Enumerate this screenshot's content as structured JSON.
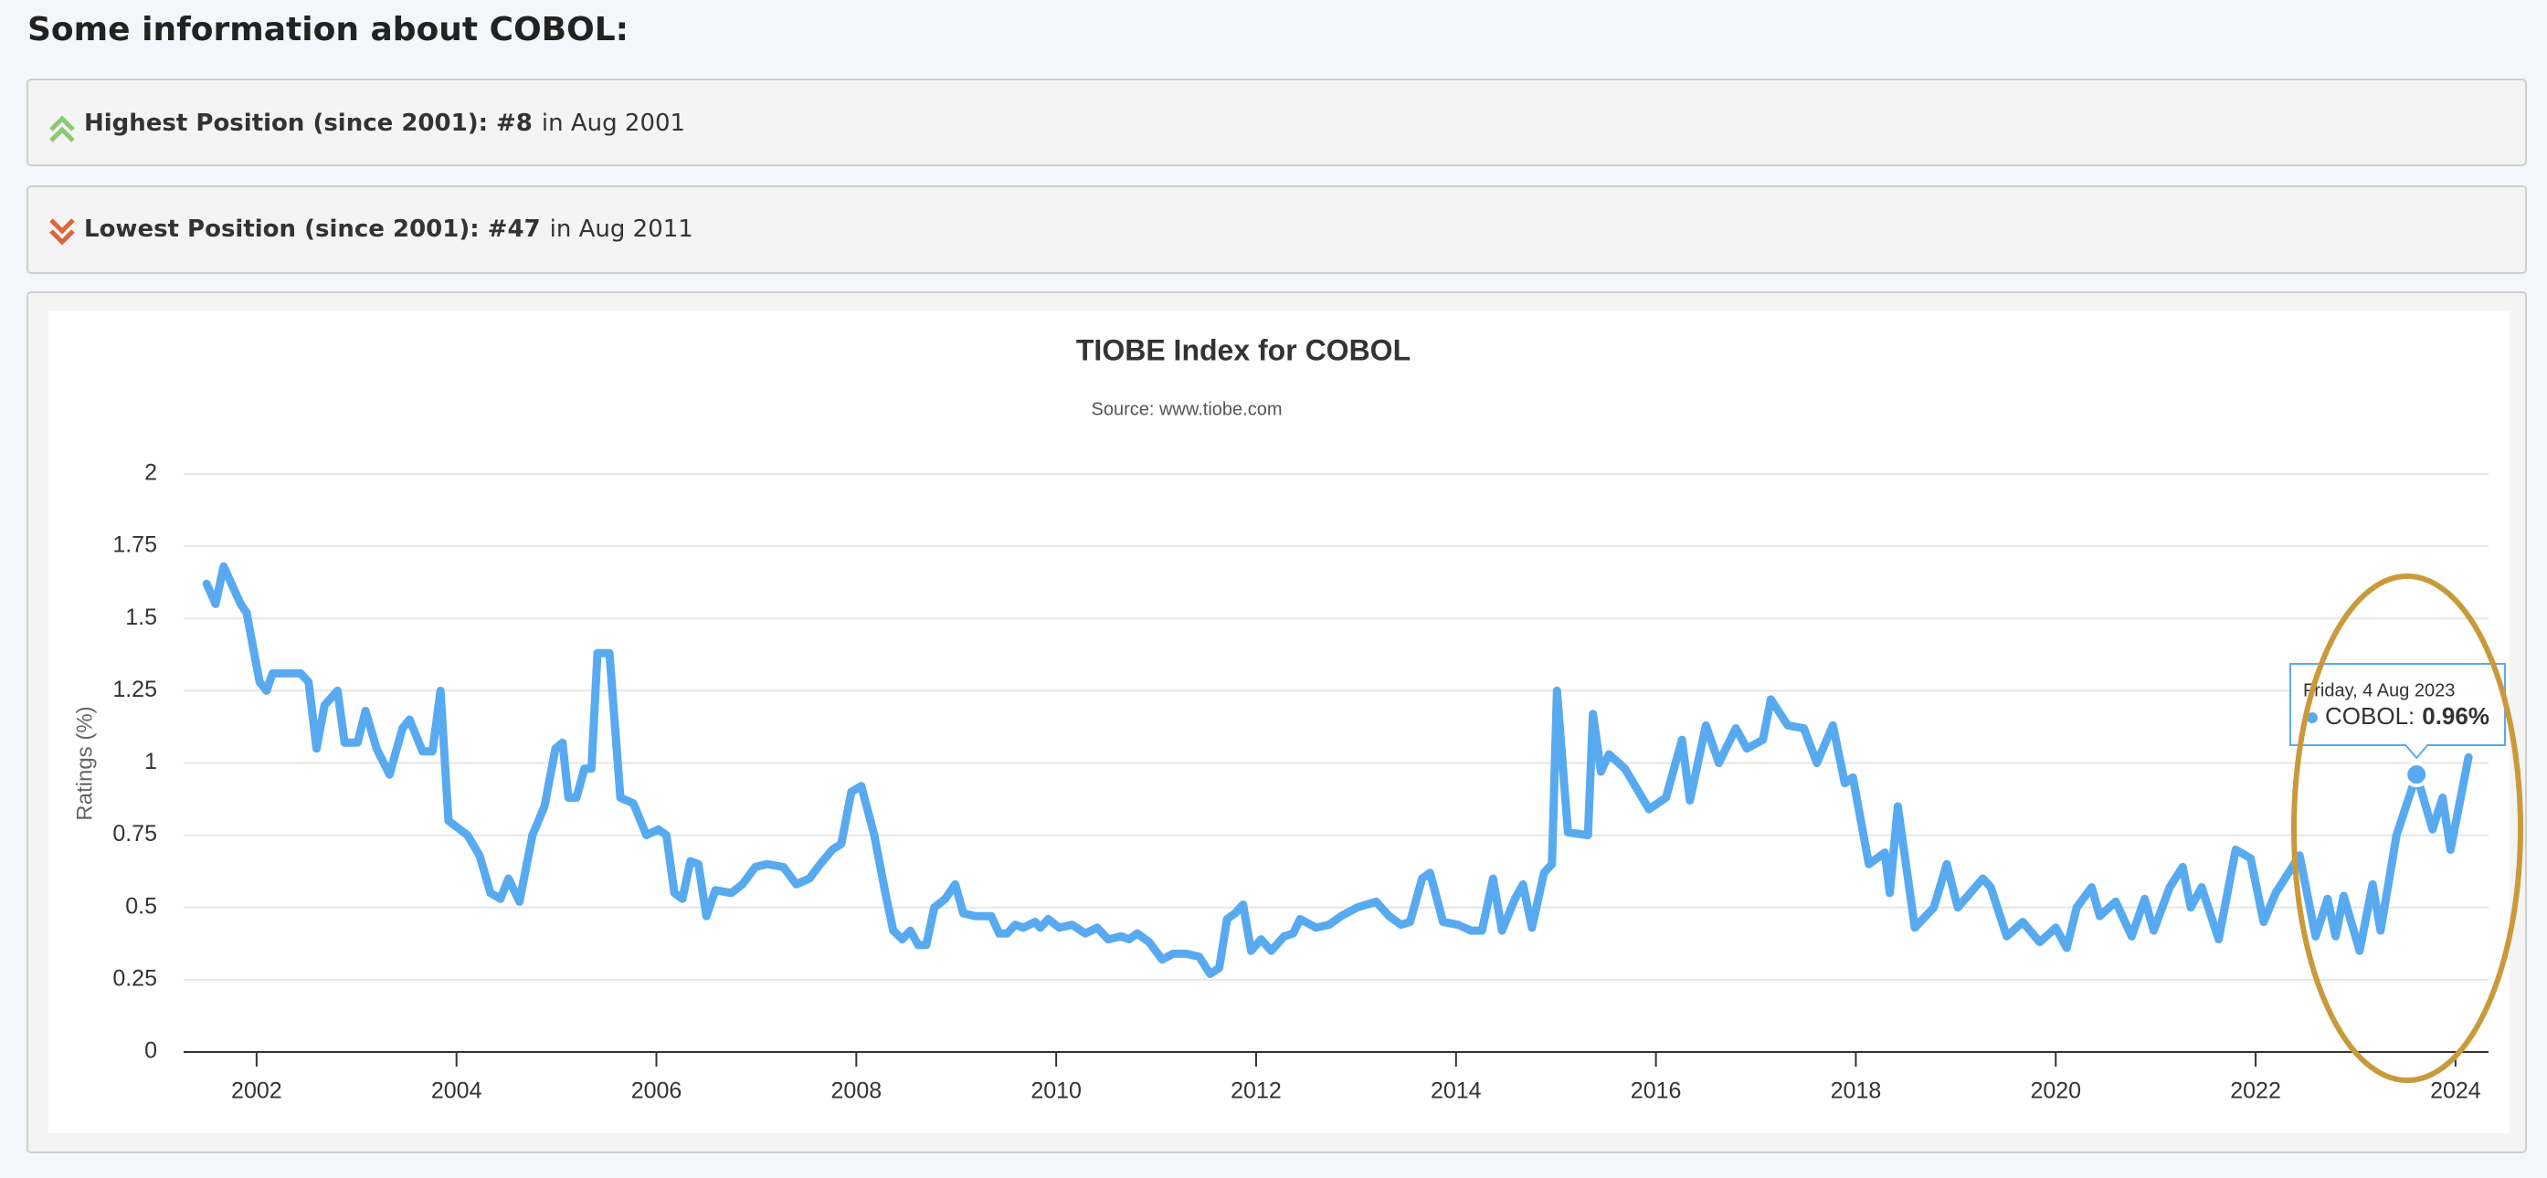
{
  "header": {
    "title": "Some information about COBOL:"
  },
  "info": [
    {
      "label": "Highest Position (since 2001): #8",
      "detail": "in Aug 2001"
    },
    {
      "label": "Lowest Position (since 2001): #47",
      "detail": "in Aug 2011"
    }
  ],
  "chart_data": {
    "type": "line",
    "title": "TIOBE Index for COBOL",
    "subtitle": "Source: www.tiobe.com",
    "y_label": "Ratings (%)",
    "color": "#58aaf0",
    "grid": true,
    "xlim": [
      2001.27,
      2024.33
    ],
    "xticks": [
      2002,
      2004,
      2006,
      2008,
      2010,
      2012,
      2014,
      2016,
      2018,
      2020,
      2022,
      2024
    ],
    "ylim": [
      0,
      2
    ],
    "yticks": [
      0,
      0.25,
      0.5,
      0.75,
      1,
      1.25,
      1.5,
      1.75,
      2
    ],
    "x": [
      2001.5,
      2001.59,
      2001.67,
      2001.84,
      2001.9,
      2002.03,
      2002.1,
      2002.16,
      2002.44,
      2002.52,
      2002.6,
      2002.68,
      2002.81,
      2002.88,
      2003.01,
      2003.09,
      2003.2,
      2003.33,
      2003.46,
      2003.53,
      2003.66,
      2003.76,
      2003.84,
      2003.92,
      2004.11,
      2004.23,
      2004.34,
      2004.44,
      2004.52,
      2004.63,
      2004.76,
      2004.88,
      2004.99,
      2005.06,
      2005.12,
      2005.2,
      2005.28,
      2005.35,
      2005.41,
      2005.53,
      2005.64,
      2005.77,
      2005.9,
      2006.02,
      2006.1,
      2006.18,
      2006.26,
      2006.34,
      2006.42,
      2006.5,
      2006.59,
      2006.75,
      2006.86,
      2006.99,
      2007.11,
      2007.27,
      2007.4,
      2007.53,
      2007.64,
      2007.76,
      2007.85,
      2007.95,
      2008.05,
      2008.18,
      2008.29,
      2008.37,
      2008.46,
      2008.54,
      2008.62,
      2008.7,
      2008.78,
      2008.89,
      2008.99,
      2009.07,
      2009.19,
      2009.35,
      2009.43,
      2009.51,
      2009.59,
      2009.67,
      2009.79,
      2009.84,
      2009.92,
      2010.03,
      2010.16,
      2010.29,
      2010.41,
      2010.52,
      2010.65,
      2010.73,
      2010.81,
      2010.93,
      2011.06,
      2011.17,
      2011.3,
      2011.43,
      2011.54,
      2011.63,
      2011.71,
      2011.79,
      2011.87,
      2011.95,
      2012.05,
      2012.15,
      2012.28,
      2012.37,
      2012.44,
      2012.6,
      2012.73,
      2012.85,
      2013.01,
      2013.2,
      2013.33,
      2013.45,
      2013.54,
      2013.66,
      2013.74,
      2013.87,
      2014.02,
      2014.15,
      2014.26,
      2014.37,
      2014.46,
      2014.59,
      2014.67,
      2014.76,
      2014.88,
      2014.96,
      2015.01,
      2015.12,
      2015.32,
      2015.37,
      2015.45,
      2015.53,
      2015.69,
      2015.93,
      2016.1,
      2016.26,
      2016.34,
      2016.5,
      2016.63,
      2016.8,
      2016.91,
      2017.07,
      2017.15,
      2017.32,
      2017.48,
      2017.61,
      2017.77,
      2017.89,
      2017.97,
      2018.13,
      2018.29,
      2018.34,
      2018.42,
      2018.59,
      2018.78,
      2018.91,
      2019.02,
      2019.27,
      2019.35,
      2019.51,
      2019.67,
      2019.84,
      2020.0,
      2020.11,
      2020.21,
      2020.36,
      2020.44,
      2020.6,
      2020.76,
      2020.89,
      2020.98,
      2021.14,
      2021.27,
      2021.35,
      2021.46,
      2021.63,
      2021.8,
      2021.95,
      2022.08,
      2022.2,
      2022.44,
      2022.6,
      2022.72,
      2022.8,
      2022.88,
      2023.04,
      2023.17,
      2023.25,
      2023.41,
      2023.61,
      2023.77,
      2023.87,
      2023.95,
      2024.13
    ],
    "values": [
      1.62,
      1.55,
      1.68,
      1.55,
      1.52,
      1.28,
      1.25,
      1.31,
      1.31,
      1.28,
      1.05,
      1.2,
      1.25,
      1.07,
      1.07,
      1.18,
      1.05,
      0.96,
      1.12,
      1.15,
      1.04,
      1.04,
      1.25,
      0.8,
      0.75,
      0.68,
      0.55,
      0.53,
      0.6,
      0.52,
      0.75,
      0.85,
      1.05,
      1.07,
      0.88,
      0.88,
      0.98,
      0.98,
      1.38,
      1.38,
      0.88,
      0.86,
      0.75,
      0.77,
      0.75,
      0.55,
      0.53,
      0.66,
      0.65,
      0.47,
      0.56,
      0.55,
      0.58,
      0.64,
      0.65,
      0.64,
      0.58,
      0.6,
      0.65,
      0.7,
      0.72,
      0.9,
      0.92,
      0.75,
      0.55,
      0.42,
      0.39,
      0.42,
      0.37,
      0.37,
      0.5,
      0.53,
      0.58,
      0.48,
      0.47,
      0.47,
      0.41,
      0.41,
      0.44,
      0.43,
      0.45,
      0.43,
      0.46,
      0.43,
      0.44,
      0.41,
      0.43,
      0.39,
      0.4,
      0.39,
      0.41,
      0.38,
      0.32,
      0.34,
      0.34,
      0.33,
      0.27,
      0.29,
      0.46,
      0.48,
      0.51,
      0.35,
      0.39,
      0.35,
      0.4,
      0.41,
      0.46,
      0.43,
      0.44,
      0.47,
      0.5,
      0.52,
      0.47,
      0.44,
      0.45,
      0.6,
      0.62,
      0.45,
      0.44,
      0.42,
      0.42,
      0.6,
      0.42,
      0.53,
      0.58,
      0.43,
      0.62,
      0.65,
      1.25,
      0.76,
      0.75,
      1.17,
      0.97,
      1.03,
      0.98,
      0.84,
      0.88,
      1.08,
      0.87,
      1.13,
      1.0,
      1.12,
      1.05,
      1.08,
      1.22,
      1.13,
      1.12,
      1.0,
      1.13,
      0.93,
      0.95,
      0.65,
      0.69,
      0.55,
      0.85,
      0.43,
      0.5,
      0.65,
      0.5,
      0.6,
      0.57,
      0.4,
      0.45,
      0.38,
      0.43,
      0.36,
      0.5,
      0.57,
      0.47,
      0.52,
      0.4,
      0.53,
      0.42,
      0.57,
      0.64,
      0.5,
      0.57,
      0.39,
      0.7,
      0.67,
      0.45,
      0.55,
      0.68,
      0.4,
      0.53,
      0.4,
      0.54,
      0.35,
      0.58,
      0.42,
      0.75,
      0.96,
      0.77,
      0.88,
      0.7,
      1.02
    ],
    "tooltip": {
      "date": "Friday, 4 Aug 2023",
      "label": "COBOL:",
      "x": 2023.61,
      "value": 0.96,
      "value_label": "0.96%"
    }
  }
}
